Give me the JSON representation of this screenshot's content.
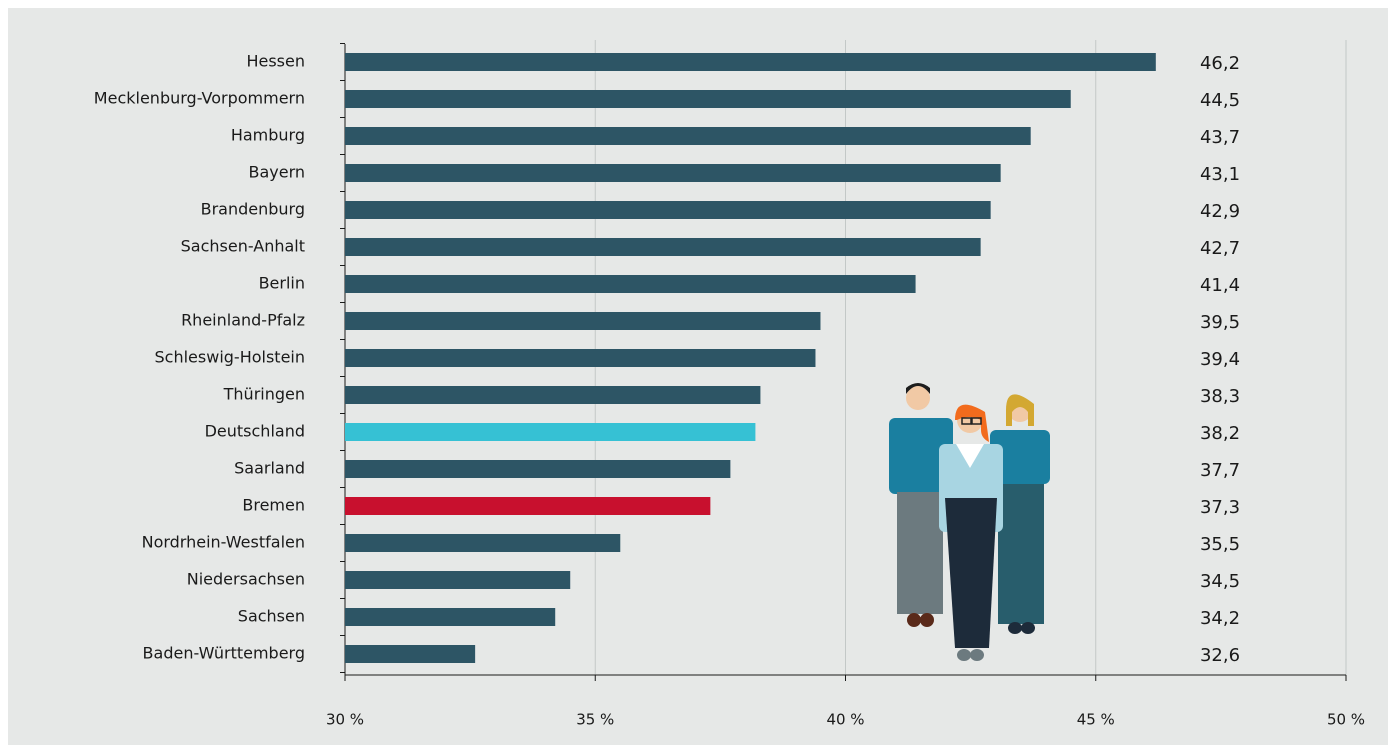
{
  "chart_data": {
    "type": "hbar",
    "categories": [
      "Hessen",
      "Mecklenburg-Vorpommern",
      "Hamburg",
      "Bayern",
      "Brandenburg",
      "Sachsen-Anhalt",
      "Berlin",
      "Rheinland-Pfalz",
      "Schleswig-Holstein",
      "Thüringen",
      "Deutschland",
      "Saarland",
      "Bremen",
      "Nordrhein-Westfalen",
      "Niedersachsen",
      "Sachsen",
      "Baden-Württemberg"
    ],
    "values": [
      46.2,
      44.5,
      43.7,
      43.1,
      42.9,
      42.7,
      41.4,
      39.5,
      39.4,
      38.3,
      38.2,
      37.7,
      37.3,
      35.5,
      34.5,
      34.2,
      32.6
    ],
    "value_labels": [
      "46,2",
      "44,5",
      "43,7",
      "43,1",
      "42,9",
      "42,7",
      "41,4",
      "39,5",
      "39,4",
      "38,3",
      "38,2",
      "37,7",
      "37,3",
      "35,5",
      "34,5",
      "34,2",
      "32,6"
    ],
    "colors": [
      "#2d5565",
      "#2d5565",
      "#2d5565",
      "#2d5565",
      "#2d5565",
      "#2d5565",
      "#2d5565",
      "#2d5565",
      "#2d5565",
      "#2d5565",
      "#36c1d4",
      "#2d5565",
      "#c8102e",
      "#2d5565",
      "#2d5565",
      "#2d5565",
      "#2d5565"
    ],
    "xlim": [
      30,
      50
    ],
    "xticks": [
      {
        "value": 30,
        "label": "30 %"
      },
      {
        "value": 35,
        "label": "35 %"
      },
      {
        "value": 40,
        "label": "40 %"
      },
      {
        "value": 45,
        "label": "45 %"
      },
      {
        "value": 50,
        "label": "50 %"
      }
    ],
    "grid": true
  }
}
